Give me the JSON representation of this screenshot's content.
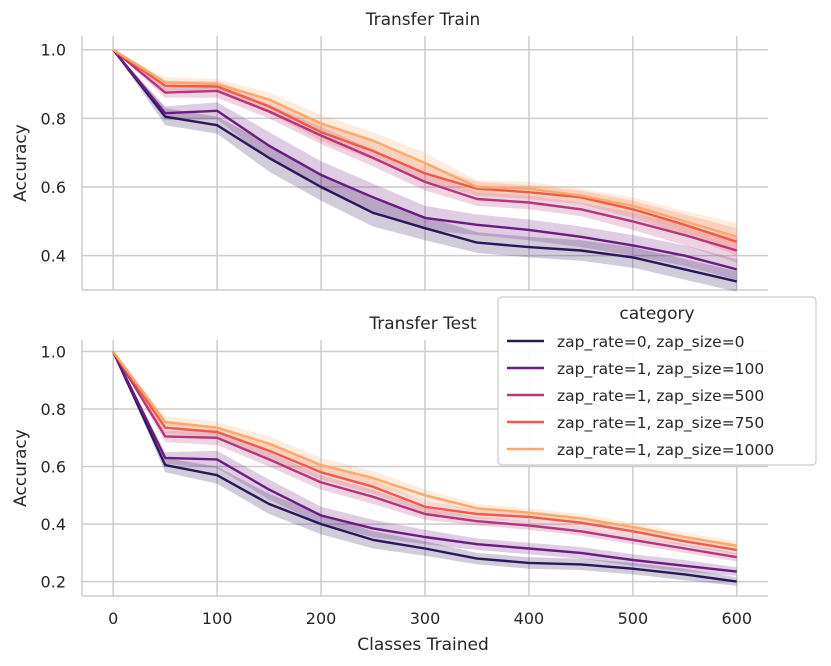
{
  "chart_data": [
    {
      "type": "line",
      "title": "Transfer Train",
      "xlabel": "",
      "ylabel": "Accuracy",
      "x": [
        0,
        50,
        100,
        150,
        200,
        250,
        300,
        350,
        400,
        450,
        500,
        550,
        600
      ],
      "xlim": [
        -30,
        630
      ],
      "ylim": [
        0.3,
        1.04
      ],
      "xticks": [
        0,
        100,
        200,
        300,
        400,
        500,
        600
      ],
      "xtick_labels": [
        "0",
        "100",
        "200",
        "300",
        "400",
        "500",
        "600"
      ],
      "yticks": [
        0.4,
        0.6,
        0.8,
        1.0
      ],
      "ytick_labels": [
        "0.4",
        "0.6",
        "0.8",
        "1.0"
      ],
      "series": [
        {
          "name": "zap_rate=0, zap_size=0",
          "color": "#2a1858",
          "values": [
            1.0,
            0.805,
            0.78,
            0.685,
            0.6,
            0.525,
            0.48,
            0.438,
            0.425,
            0.415,
            0.395,
            0.36,
            0.325
          ],
          "ci": [
            0.025,
            0.025,
            0.04,
            0.04,
            0.04,
            0.035,
            0.03,
            0.03,
            0.03,
            0.03,
            0.03,
            0.03
          ]
        },
        {
          "name": "zap_rate=1, zap_size=100",
          "color": "#6a1d80",
          "values": [
            1.0,
            0.815,
            0.822,
            0.72,
            0.635,
            0.57,
            0.51,
            0.49,
            0.475,
            0.455,
            0.43,
            0.4,
            0.36
          ],
          "ci": [
            0.02,
            0.025,
            0.04,
            0.04,
            0.04,
            0.035,
            0.03,
            0.03,
            0.03,
            0.03,
            0.03,
            0.03
          ]
        },
        {
          "name": "zap_rate=1, zap_size=500",
          "color": "#b5367a",
          "values": [
            1.0,
            0.875,
            0.88,
            0.82,
            0.75,
            0.685,
            0.615,
            0.565,
            0.555,
            0.535,
            0.5,
            0.46,
            0.415
          ],
          "ci": [
            0.015,
            0.02,
            0.02,
            0.025,
            0.025,
            0.025,
            0.02,
            0.02,
            0.02,
            0.025,
            0.03,
            0.035
          ]
        },
        {
          "name": "zap_rate=1, zap_size=750",
          "color": "#ee5a4e",
          "values": [
            1.0,
            0.895,
            0.893,
            0.835,
            0.76,
            0.705,
            0.64,
            0.595,
            0.585,
            0.57,
            0.535,
            0.49,
            0.44
          ],
          "ci": [
            0.015,
            0.015,
            0.02,
            0.025,
            0.025,
            0.025,
            0.02,
            0.02,
            0.02,
            0.025,
            0.03,
            0.04
          ]
        },
        {
          "name": "zap_rate=1, zap_size=1000",
          "color": "#fba86b",
          "values": [
            1.0,
            0.905,
            0.9,
            0.855,
            0.785,
            0.735,
            0.67,
            0.6,
            0.595,
            0.575,
            0.545,
            0.5,
            0.455
          ],
          "ci": [
            0.015,
            0.015,
            0.02,
            0.025,
            0.025,
            0.03,
            0.02,
            0.02,
            0.02,
            0.025,
            0.03,
            0.04
          ]
        }
      ]
    },
    {
      "type": "line",
      "title": "Transfer Test",
      "xlabel": "Classes Trained",
      "ylabel": "Accuracy",
      "x": [
        0,
        50,
        100,
        150,
        200,
        250,
        300,
        350,
        400,
        450,
        500,
        550,
        600
      ],
      "xlim": [
        -30,
        630
      ],
      "ylim": [
        0.15,
        1.04
      ],
      "xticks": [
        0,
        100,
        200,
        300,
        400,
        500,
        600
      ],
      "xtick_labels": [
        "0",
        "100",
        "200",
        "300",
        "400",
        "500",
        "600"
      ],
      "yticks": [
        0.2,
        0.4,
        0.6,
        0.8,
        1.0
      ],
      "ytick_labels": [
        "0.2",
        "0.4",
        "0.6",
        "0.8",
        "1.0"
      ],
      "series": [
        {
          "name": "zap_rate=0, zap_size=0",
          "color": "#2a1858",
          "values": [
            1.0,
            0.605,
            0.57,
            0.47,
            0.4,
            0.345,
            0.315,
            0.28,
            0.265,
            0.26,
            0.245,
            0.225,
            0.2
          ],
          "ci": [
            0.025,
            0.03,
            0.035,
            0.035,
            0.03,
            0.025,
            0.02,
            0.02,
            0.02,
            0.02,
            0.02,
            0.015
          ]
        },
        {
          "name": "zap_rate=1, zap_size=100",
          "color": "#6a1d80",
          "values": [
            1.0,
            0.63,
            0.625,
            0.52,
            0.43,
            0.385,
            0.355,
            0.33,
            0.315,
            0.3,
            0.275,
            0.255,
            0.235
          ],
          "ci": [
            0.02,
            0.03,
            0.035,
            0.03,
            0.03,
            0.025,
            0.02,
            0.02,
            0.02,
            0.02,
            0.02,
            0.015
          ]
        },
        {
          "name": "zap_rate=1, zap_size=500",
          "color": "#b5367a",
          "values": [
            1.0,
            0.705,
            0.7,
            0.625,
            0.545,
            0.495,
            0.435,
            0.41,
            0.395,
            0.375,
            0.345,
            0.315,
            0.285
          ],
          "ci": [
            0.02,
            0.025,
            0.025,
            0.025,
            0.025,
            0.02,
            0.015,
            0.015,
            0.015,
            0.015,
            0.015,
            0.015
          ]
        },
        {
          "name": "zap_rate=1, zap_size=750",
          "color": "#ee5a4e",
          "values": [
            1.0,
            0.735,
            0.72,
            0.655,
            0.58,
            0.53,
            0.46,
            0.435,
            0.425,
            0.405,
            0.375,
            0.34,
            0.31
          ],
          "ci": [
            0.02,
            0.02,
            0.025,
            0.025,
            0.025,
            0.02,
            0.015,
            0.015,
            0.015,
            0.015,
            0.015,
            0.015
          ]
        },
        {
          "name": "zap_rate=1, zap_size=1000",
          "color": "#fba86b",
          "values": [
            1.0,
            0.755,
            0.735,
            0.68,
            0.605,
            0.56,
            0.5,
            0.455,
            0.44,
            0.42,
            0.39,
            0.355,
            0.325
          ],
          "ci": [
            0.02,
            0.02,
            0.025,
            0.025,
            0.025,
            0.02,
            0.015,
            0.015,
            0.015,
            0.015,
            0.015,
            0.015
          ]
        }
      ]
    }
  ],
  "legend": {
    "title": "category",
    "placement": "right, between panels",
    "entries": [
      {
        "label": "zap_rate=0, zap_size=0",
        "color": "#2a1858"
      },
      {
        "label": "zap_rate=1, zap_size=100",
        "color": "#6a1d80"
      },
      {
        "label": "zap_rate=1, zap_size=500",
        "color": "#b5367a"
      },
      {
        "label": "zap_rate=1, zap_size=750",
        "color": "#ee5a4e"
      },
      {
        "label": "zap_rate=1, zap_size=1000",
        "color": "#fba86b"
      }
    ]
  }
}
